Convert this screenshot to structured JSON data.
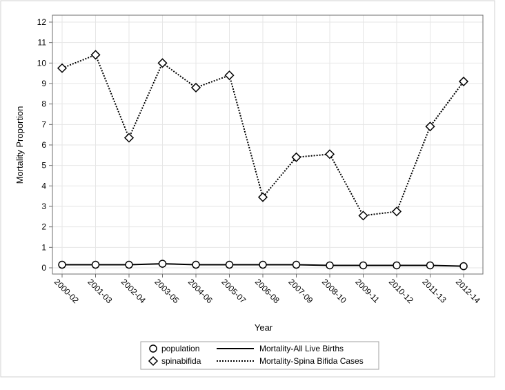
{
  "chart_data": {
    "type": "line",
    "title": "",
    "xlabel": "Year",
    "ylabel": "Mortality Proportion",
    "categories": [
      "2000-02",
      "2001-03",
      "2002-04",
      "2003-05",
      "2004-06",
      "2005-07",
      "2006-08",
      "2007-09",
      "2008-10",
      "2009-11",
      "2010-12",
      "2011-13",
      "2012-14"
    ],
    "ylim": [
      0,
      12
    ],
    "yticks": [
      0,
      1,
      2,
      3,
      4,
      5,
      6,
      7,
      8,
      9,
      10,
      11,
      12
    ],
    "grid": true,
    "legend_position": "bottom",
    "series": [
      {
        "name": "Mortality-All Live Births",
        "marker_label": "population",
        "marker": "circle",
        "line_style": "solid",
        "color": "#000000",
        "values": [
          0.15,
          0.15,
          0.15,
          0.2,
          0.15,
          0.15,
          0.15,
          0.15,
          0.12,
          0.12,
          0.12,
          0.12,
          0.08
        ]
      },
      {
        "name": "Mortality-Spina Bifida Cases",
        "marker_label": "spinabifida",
        "marker": "diamond",
        "line_style": "dotted",
        "color": "#000000",
        "values": [
          9.75,
          10.4,
          6.35,
          10.0,
          8.8,
          9.4,
          3.45,
          5.4,
          5.55,
          2.55,
          2.75,
          6.9,
          9.1
        ]
      }
    ]
  }
}
